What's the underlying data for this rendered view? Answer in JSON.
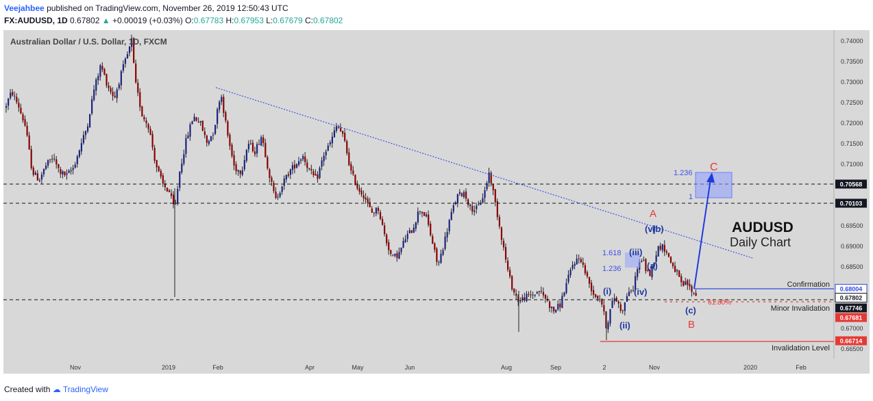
{
  "header": {
    "author": "Veejahbee",
    "published": "published on TradingView.com, November 26, 2019 12:50:43 UTC",
    "symbol": "FX:AUDUSD, 1D",
    "last": "0.67802",
    "change_arrow": "▲",
    "change": "+0.00019 (+0.03%)",
    "o_label": "O:",
    "o": "0.67783",
    "h_label": "H:",
    "h": "0.67953",
    "l_label": "L:",
    "l": "0.67679",
    "c_label": "C:",
    "c": "0.67802"
  },
  "footer": {
    "created": "Created with",
    "brand": "TradingView"
  },
  "chart_data": {
    "type": "candlestick",
    "title": "Australian Dollar / U.S. Dollar, 1D, FXCM",
    "overlay_title": "AUDUSD",
    "overlay_subtitle": "Daily Chart",
    "ylim": [
      0.6625,
      0.7425
    ],
    "y_ticks": [
      "0.74000",
      "0.73500",
      "0.73000",
      "0.72500",
      "0.72000",
      "0.71500",
      "0.71000",
      "0.70500",
      "0.70000",
      "0.69500",
      "0.69000",
      "0.68500",
      "0.68000",
      "0.67500",
      "0.67000",
      "0.66500"
    ],
    "x_ticks": [
      "Nov",
      "2019",
      "Feb",
      "Apr",
      "May",
      "Jun",
      "Aug",
      "Sep",
      "2",
      "Nov",
      "2020",
      "Feb"
    ],
    "price_path": [
      [
        0,
        0.7235
      ],
      [
        10,
        0.7275
      ],
      [
        20,
        0.724
      ],
      [
        30,
        0.719
      ],
      [
        40,
        0.708
      ],
      [
        50,
        0.706
      ],
      [
        60,
        0.7095
      ],
      [
        70,
        0.7115
      ],
      [
        80,
        0.708
      ],
      [
        90,
        0.707
      ],
      [
        100,
        0.709
      ],
      [
        110,
        0.714
      ],
      [
        120,
        0.719
      ],
      [
        130,
        0.728
      ],
      [
        140,
        0.734
      ],
      [
        150,
        0.729
      ],
      [
        160,
        0.726
      ],
      [
        170,
        0.732
      ],
      [
        180,
        0.737
      ],
      [
        185,
        0.74
      ],
      [
        190,
        0.73
      ],
      [
        200,
        0.722
      ],
      [
        210,
        0.719
      ],
      [
        220,
        0.71
      ],
      [
        230,
        0.705
      ],
      [
        240,
        0.703
      ],
      [
        248,
        0.6985
      ],
      [
        255,
        0.708
      ],
      [
        265,
        0.716
      ],
      [
        275,
        0.7215
      ],
      [
        285,
        0.72
      ],
      [
        295,
        0.715
      ],
      [
        305,
        0.718
      ],
      [
        315,
        0.7275
      ],
      [
        325,
        0.717
      ],
      [
        335,
        0.709
      ],
      [
        345,
        0.708
      ],
      [
        355,
        0.715
      ],
      [
        365,
        0.713
      ],
      [
        375,
        0.717
      ],
      [
        385,
        0.708
      ],
      [
        395,
        0.701
      ],
      [
        405,
        0.705
      ],
      [
        415,
        0.708
      ],
      [
        425,
        0.71
      ],
      [
        435,
        0.712
      ],
      [
        445,
        0.708
      ],
      [
        455,
        0.706
      ],
      [
        465,
        0.712
      ],
      [
        475,
        0.715
      ],
      [
        485,
        0.7195
      ],
      [
        495,
        0.716
      ],
      [
        505,
        0.708
      ],
      [
        515,
        0.704
      ],
      [
        525,
        0.702
      ],
      [
        535,
        0.698
      ],
      [
        545,
        0.699
      ],
      [
        555,
        0.692
      ],
      [
        565,
        0.687
      ],
      [
        575,
        0.688
      ],
      [
        585,
        0.692
      ],
      [
        595,
        0.694
      ],
      [
        605,
        0.699
      ],
      [
        615,
        0.697
      ],
      [
        625,
        0.69
      ],
      [
        632,
        0.685
      ],
      [
        640,
        0.69
      ],
      [
        650,
        0.697
      ],
      [
        660,
        0.702
      ],
      [
        670,
        0.703
      ],
      [
        680,
        0.699
      ],
      [
        690,
        0.699
      ],
      [
        700,
        0.703
      ],
      [
        707,
        0.708
      ],
      [
        715,
        0.701
      ],
      [
        725,
        0.692
      ],
      [
        735,
        0.683
      ],
      [
        742,
        0.679
      ],
      [
        750,
        0.6765
      ],
      [
        760,
        0.6775
      ],
      [
        770,
        0.678
      ],
      [
        780,
        0.679
      ],
      [
        790,
        0.677
      ],
      [
        800,
        0.674
      ],
      [
        810,
        0.6755
      ],
      [
        820,
        0.681
      ],
      [
        830,
        0.686
      ],
      [
        840,
        0.687
      ],
      [
        850,
        0.682
      ],
      [
        860,
        0.678
      ],
      [
        870,
        0.677
      ],
      [
        878,
        0.67
      ],
      [
        885,
        0.6755
      ],
      [
        890,
        0.6775
      ],
      [
        895,
        0.676
      ],
      [
        900,
        0.674
      ],
      [
        905,
        0.676
      ],
      [
        910,
        0.6795
      ],
      [
        915,
        0.678
      ],
      [
        922,
        0.684
      ],
      [
        930,
        0.687
      ],
      [
        936,
        0.684
      ],
      [
        942,
        0.683
      ],
      [
        948,
        0.687
      ],
      [
        955,
        0.69
      ],
      [
        962,
        0.6895
      ],
      [
        968,
        0.6875
      ],
      [
        975,
        0.685
      ],
      [
        982,
        0.683
      ],
      [
        988,
        0.68
      ],
      [
        995,
        0.681
      ],
      [
        1000,
        0.6795
      ],
      [
        1005,
        0.6785
      ],
      [
        1010,
        0.678
      ]
    ],
    "price_labels": [
      {
        "value": 0.70568,
        "text": "0.70568",
        "style": "black"
      },
      {
        "value": 0.70103,
        "text": "0.70103",
        "style": "black"
      },
      {
        "value": 0.68004,
        "text": "0.68004",
        "style": "blue"
      },
      {
        "value": 0.67802,
        "text": "0.67802",
        "style": "white"
      },
      {
        "value": 0.67746,
        "text": "0.67746",
        "style": "black"
      },
      {
        "value": 0.67681,
        "text": "0.67681",
        "style": "red"
      },
      {
        "value": 0.66714,
        "text": "0.66714",
        "style": "red"
      }
    ],
    "annotations": {
      "wave_A": "A",
      "wave_B": "B",
      "wave_C": "C",
      "wave_i": "(i)",
      "wave_ii": "(ii)",
      "wave_iii": "(iii)",
      "wave_iv": "(iv)",
      "wave_v": "(v)",
      "wave_a": "(a)",
      "wave_b": "(b)",
      "wave_c": "(c)",
      "fib_1618": "1.618",
      "fib_1236_small": "1.236",
      "fib_1236_target": "1.236",
      "fib_1": "1",
      "fib_618": "61.80%",
      "confirmation": "Confirmation",
      "minor_invalidation": "Minor Invalidation",
      "invalidation": "Invalidation Level"
    },
    "colors": {
      "bull": "#1a237e",
      "bear": "#8b0000",
      "wave_blue": "#1e3a9f",
      "wave_red": "#e53935",
      "trend_blue": "#3f51e6",
      "fib_fill": "#8c9eff",
      "panel_bg": "#d8d8d8"
    },
    "grid": false
  }
}
